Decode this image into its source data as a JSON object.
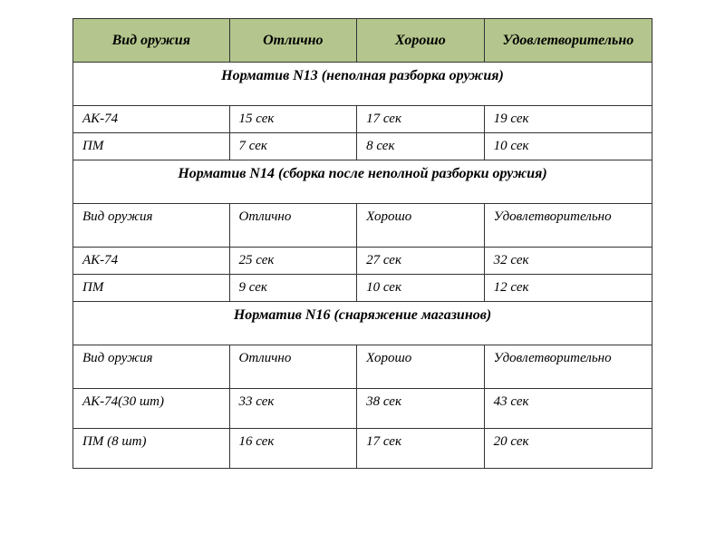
{
  "header": {
    "col1": "Вид оружия",
    "col2": "Отлично",
    "col3": "Хорошо",
    "col4": "Удовлетворительно"
  },
  "section1": {
    "title": "Норматив N13 (неполная  разборка оружия)",
    "rows": [
      {
        "weapon": "АК-74",
        "excellent": "15 сек",
        "good": "17 сек",
        "satisfactory": "19 сек"
      },
      {
        "weapon": "ПМ",
        "excellent": "7 сек",
        "good": "8 сек",
        "satisfactory": "10 сек"
      }
    ]
  },
  "section2": {
    "title": "Норматив N14 (сборка после неполной разборки оружия)",
    "subheader": {
      "col1": "Вид оружия",
      "col2": "Отлично",
      "col3": "Хорошо",
      "col4": "Удовлетворительно"
    },
    "rows": [
      {
        "weapon": "АК-74",
        "excellent": "25 сек",
        "good": "27 сек",
        "satisfactory": "32 сек"
      },
      {
        "weapon": "ПМ",
        "excellent": "9 сек",
        "good": "10 сек",
        "satisfactory": "12 сек"
      }
    ]
  },
  "section3": {
    "title": "Норматив N16 (снаряжение магазинов)",
    "subheader": {
      "col1": "Вид оружия",
      "col2": "Отлично",
      "col3": "Хорошо",
      "col4": "Удовлетворительно"
    },
    "rows": [
      {
        "weapon": "АК-74(30 шт)",
        "excellent": "33 сек",
        "good": "38 сек",
        "satisfactory": "43 сек"
      },
      {
        "weapon": "ПМ (8 шт)",
        "excellent": "16 сек",
        "good": "17 сек",
        "satisfactory": "20 сек"
      }
    ]
  }
}
